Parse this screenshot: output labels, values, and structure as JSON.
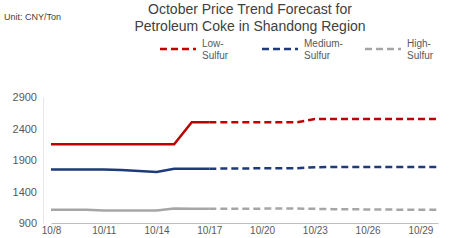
{
  "chart_data": {
    "type": "line",
    "title": "October Price Trend Forecast for Petroleum Coke in Shandong Region",
    "ylabel": "Unit: CNY/Ton",
    "categories": [
      "10/8",
      null,
      null,
      "10/11",
      null,
      null,
      "10/14",
      null,
      null,
      "10/17",
      null,
      null,
      "10/20",
      null,
      null,
      "10/23",
      null,
      null,
      "10/26",
      null,
      null,
      "10/29",
      null
    ],
    "ylim": [
      900,
      2900
    ],
    "yticks": [
      900,
      1400,
      1900,
      2400,
      2900
    ],
    "grid": false,
    "legend": "top",
    "series": [
      {
        "name": "Low-Sulfur",
        "color": "#C00000",
        "line_style": "dashed",
        "values": [
          2150,
          2150,
          2150,
          2150,
          2150,
          2150,
          2150,
          2150,
          2500,
          2500,
          null,
          null,
          null,
          null,
          null,
          null,
          null,
          null,
          null,
          null,
          null,
          null,
          null
        ],
        "forecast": [
          null,
          null,
          null,
          null,
          null,
          null,
          null,
          null,
          null,
          2500,
          2500,
          2500,
          2500,
          2500,
          2500,
          2550,
          2550,
          2550,
          2550,
          2550,
          2550,
          2550,
          2550
        ]
      },
      {
        "name": "Medium-Sulfur",
        "color": "#1F3A7A",
        "line_style": "dashed",
        "values": [
          1750,
          1750,
          1750,
          1750,
          1740,
          1725,
          1710,
          1760,
          1760,
          1760,
          null,
          null,
          null,
          null,
          null,
          null,
          null,
          null,
          null,
          null,
          null,
          null,
          null
        ],
        "forecast": [
          null,
          null,
          null,
          null,
          null,
          null,
          null,
          null,
          null,
          1760,
          1765,
          1765,
          1770,
          1770,
          1770,
          1785,
          1790,
          1790,
          1790,
          1790,
          1790,
          1790,
          1790
        ]
      },
      {
        "name": "High-Sulfur",
        "color": "#A6A6A6",
        "line_style": "dashed",
        "values": [
          1110,
          1110,
          1110,
          1100,
          1100,
          1100,
          1100,
          1130,
          1125,
          1125,
          null,
          null,
          null,
          null,
          null,
          null,
          null,
          null,
          null,
          null,
          null,
          null,
          null
        ],
        "forecast": [
          null,
          null,
          null,
          null,
          null,
          null,
          null,
          null,
          null,
          1125,
          1125,
          1128,
          1128,
          1130,
          1130,
          1125,
          1120,
          1120,
          1115,
          1115,
          1110,
          1110,
          1110
        ]
      }
    ]
  }
}
